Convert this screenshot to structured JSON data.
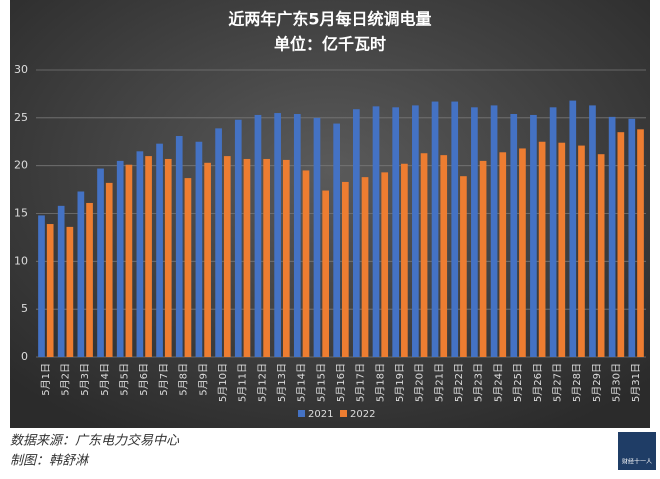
{
  "chart_data": {
    "type": "bar",
    "title": "近两年广东5月每日统调电量",
    "subtitle": "单位：亿千瓦时",
    "categories": [
      "5月1日",
      "5月2日",
      "5月3日",
      "5月4日",
      "5月5日",
      "5月6日",
      "5月7日",
      "5月8日",
      "5月9日",
      "5月10日",
      "5月11日",
      "5月12日",
      "5月13日",
      "5月14日",
      "5月15日",
      "5月16日",
      "5月17日",
      "5月18日",
      "5月19日",
      "5月20日",
      "5月21日",
      "5月22日",
      "5月23日",
      "5月24日",
      "5月25日",
      "5月26日",
      "5月27日",
      "5月28日",
      "5月29日",
      "5月30日",
      "5月31日"
    ],
    "series": [
      {
        "name": "2021",
        "color": "#4472c4",
        "values": [
          14.8,
          15.8,
          17.3,
          19.7,
          20.5,
          21.5,
          22.3,
          23.1,
          22.5,
          23.9,
          24.8,
          25.3,
          25.5,
          25.4,
          25.0,
          24.4,
          25.9,
          26.2,
          26.1,
          26.3,
          26.7,
          26.7,
          26.1,
          26.3,
          25.4,
          25.3,
          26.1,
          26.8,
          26.3,
          25.1,
          24.9
        ]
      },
      {
        "name": "2022",
        "color": "#ed7d31",
        "values": [
          13.9,
          13.6,
          16.1,
          18.2,
          20.1,
          21.0,
          20.7,
          18.7,
          20.3,
          21.0,
          20.7,
          20.7,
          20.6,
          19.5,
          17.4,
          18.3,
          18.8,
          19.3,
          20.2,
          21.3,
          21.1,
          18.9,
          20.5,
          21.4,
          21.8,
          22.5,
          22.4,
          22.1,
          21.2,
          23.5,
          23.8
        ]
      }
    ],
    "ylim": [
      0,
      30
    ],
    "yticks": [
      0,
      5,
      10,
      15,
      20,
      25,
      30
    ],
    "grid": true,
    "legend": "bottom"
  },
  "footer": {
    "source": "数据来源：广东电力交易中心",
    "author": "制图：韩舒淋",
    "logo": "财经十一人"
  }
}
